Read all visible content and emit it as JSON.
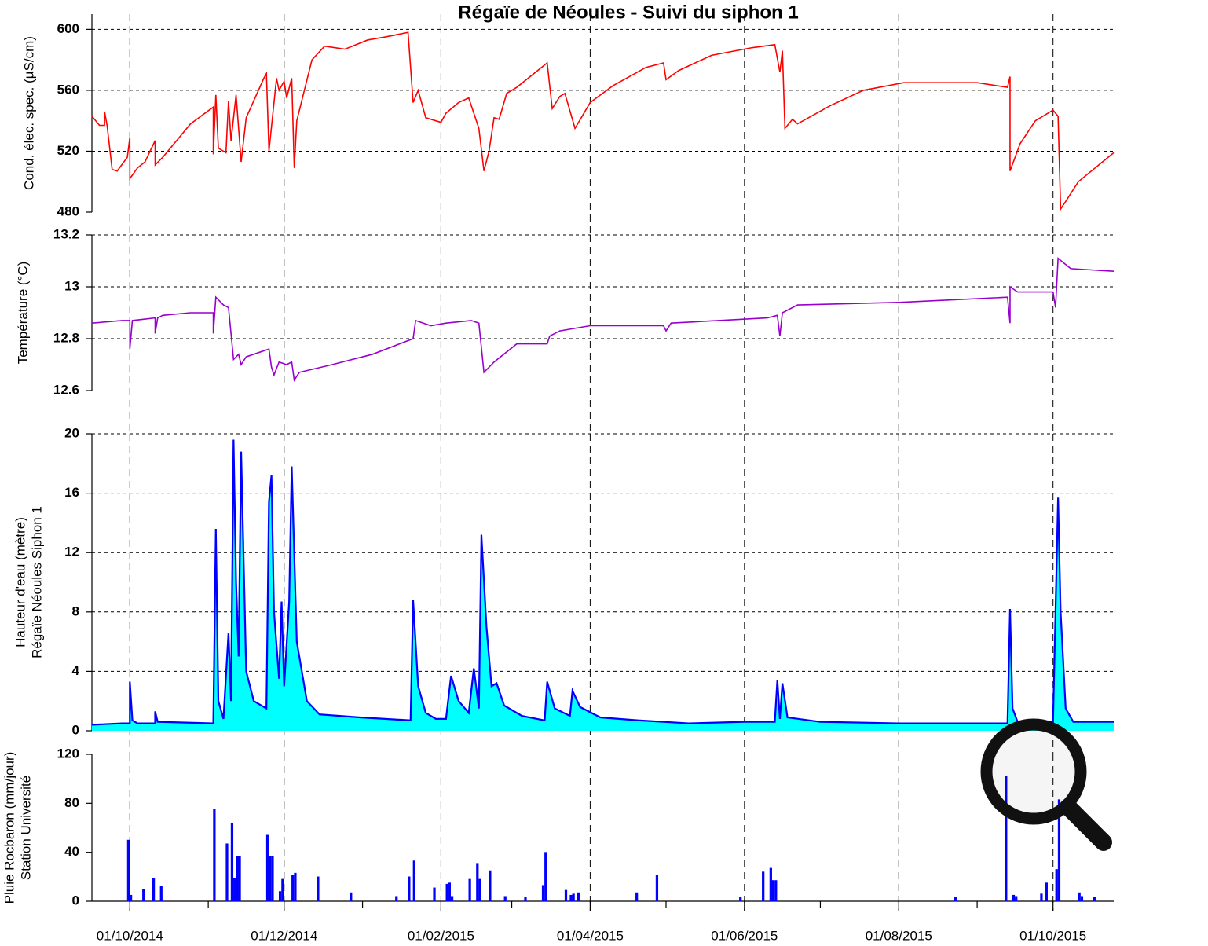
{
  "chart_data": [
    {
      "type": "line",
      "title": "Régaïe de Néoules - Suivi du siphon 1",
      "y_label": [
        "Cond. élec. spec. (µS/cm)"
      ],
      "xlim": [
        "2014-09-16",
        "2015-10-25"
      ],
      "xticks": [
        "2014-10-01",
        "2014-12-01",
        "2015-02-01",
        "2015-04-01",
        "2015-06-01",
        "2015-08-01",
        "2015-10-01"
      ],
      "ylim": [
        480,
        610
      ],
      "yticks": [
        480,
        520,
        560,
        600
      ],
      "grid": "both",
      "color": "#ff0000",
      "x": [
        "2014-09-16",
        "2014-09-19",
        "2014-09-21",
        "2014-09-21",
        "2014-09-22",
        "2014-09-24",
        "2014-09-26",
        "2014-09-30",
        "2014-10-01",
        "2014-10-01",
        "2014-10-04",
        "2014-10-07",
        "2014-10-11",
        "2014-10-11",
        "2014-10-14",
        "2014-10-25",
        "2014-11-03",
        "2014-11-03",
        "2014-11-04",
        "2014-11-05",
        "2014-11-08",
        "2014-11-09",
        "2014-11-10",
        "2014-11-12",
        "2014-11-14",
        "2014-11-16",
        "2014-11-23",
        "2014-11-24",
        "2014-11-25",
        "2014-11-28",
        "2014-11-29",
        "2014-12-01",
        "2014-12-02",
        "2014-12-04",
        "2014-12-05",
        "2014-12-06",
        "2014-12-12",
        "2014-12-17",
        "2014-12-25",
        "2015-01-03",
        "2015-01-10",
        "2015-01-19",
        "2015-01-21",
        "2015-01-23",
        "2015-01-26",
        "2015-02-01",
        "2015-02-03",
        "2015-02-08",
        "2015-02-12",
        "2015-02-14",
        "2015-02-16",
        "2015-02-18",
        "2015-02-20",
        "2015-02-22",
        "2015-02-24",
        "2015-02-27",
        "2015-03-03",
        "2015-03-15",
        "2015-03-17",
        "2015-03-20",
        "2015-03-22",
        "2015-03-26",
        "2015-04-01",
        "2015-04-10",
        "2015-04-23",
        "2015-04-30",
        "2015-05-01",
        "2015-05-06",
        "2015-05-19",
        "2015-06-04",
        "2015-06-13",
        "2015-06-15",
        "2015-06-16",
        "2015-06-17",
        "2015-06-20",
        "2015-06-22",
        "2015-07-05",
        "2015-07-18",
        "2015-08-03",
        "2015-09-01",
        "2015-09-13",
        "2015-09-14",
        "2015-09-14",
        "2015-09-18",
        "2015-09-24",
        "2015-10-01",
        "2015-10-03",
        "2015-10-04",
        "2015-10-06",
        "2015-10-11",
        "2015-10-25"
      ],
      "values": [
        543,
        537,
        537,
        546,
        537,
        508,
        507,
        516,
        529,
        502,
        509,
        513,
        527,
        511,
        516,
        538,
        549,
        518,
        557,
        522,
        519,
        553,
        527,
        557,
        513,
        542,
        568,
        571,
        520,
        568,
        560,
        566,
        555,
        568,
        509,
        540,
        580,
        589,
        587,
        593,
        595,
        598,
        552,
        560,
        542,
        539,
        545,
        552,
        555,
        545,
        535,
        507,
        520,
        542,
        541,
        558,
        562,
        578,
        548,
        556,
        558,
        535,
        552,
        563,
        575,
        578,
        567,
        573,
        583,
        588,
        590,
        572,
        586,
        535,
        541,
        538,
        550,
        560,
        565,
        565,
        562,
        569,
        507,
        525,
        540,
        547,
        543,
        482,
        487,
        500,
        519
      ]
    },
    {
      "type": "line",
      "y_label": [
        "Température (°C)"
      ],
      "xlim": [
        "2014-09-16",
        "2015-10-25"
      ],
      "xticks": [
        "2014-10-01",
        "2014-12-01",
        "2015-02-01",
        "2015-04-01",
        "2015-06-01",
        "2015-08-01",
        "2015-10-01"
      ],
      "ylim": [
        12.6,
        13.2
      ],
      "yticks": [
        12.6,
        12.8,
        13,
        13.2
      ],
      "grid": "both",
      "color": "#9900cc",
      "x": [
        "2014-09-16",
        "2014-09-28",
        "2014-10-01",
        "2014-10-01",
        "2014-10-02",
        "2014-10-11",
        "2014-10-11",
        "2014-10-12",
        "2014-10-14",
        "2014-10-25",
        "2014-11-03",
        "2014-11-03",
        "2014-11-04",
        "2014-11-07",
        "2014-11-09",
        "2014-11-11",
        "2014-11-13",
        "2014-11-14",
        "2014-11-16",
        "2014-11-25",
        "2014-11-26",
        "2014-11-27",
        "2014-11-29",
        "2014-12-02",
        "2014-12-04",
        "2014-12-05",
        "2014-12-07",
        "2014-12-20",
        "2015-01-05",
        "2015-01-21",
        "2015-01-22",
        "2015-01-28",
        "2015-02-03",
        "2015-02-13",
        "2015-02-16",
        "2015-02-18",
        "2015-02-22",
        "2015-03-03",
        "2015-03-15",
        "2015-03-16",
        "2015-03-20",
        "2015-04-01",
        "2015-04-30",
        "2015-05-01",
        "2015-05-03",
        "2015-06-10",
        "2015-06-14",
        "2015-06-15",
        "2015-06-16",
        "2015-06-22",
        "2015-08-01",
        "2015-09-13",
        "2015-09-14",
        "2015-09-14",
        "2015-09-17",
        "2015-10-01",
        "2015-10-02",
        "2015-10-03",
        "2015-10-08",
        "2015-10-25"
      ],
      "values": [
        12.86,
        12.87,
        12.87,
        12.76,
        12.87,
        12.88,
        12.82,
        12.88,
        12.89,
        12.9,
        12.9,
        12.82,
        12.96,
        12.93,
        12.92,
        12.72,
        12.74,
        12.7,
        12.73,
        12.76,
        12.69,
        12.66,
        12.71,
        12.7,
        12.71,
        12.64,
        12.67,
        12.7,
        12.74,
        12.8,
        12.87,
        12.85,
        12.86,
        12.87,
        12.86,
        12.67,
        12.71,
        12.78,
        12.78,
        12.81,
        12.83,
        12.85,
        12.85,
        12.83,
        12.86,
        12.88,
        12.89,
        12.81,
        12.9,
        12.93,
        12.94,
        12.96,
        12.86,
        13.0,
        12.98,
        12.98,
        12.92,
        13.11,
        13.07,
        13.06
      ]
    },
    {
      "type": "area",
      "y_label": [
        "Hauteur d'eau (mètre)",
        "Régaïe Néoules Siphon 1"
      ],
      "xlim": [
        "2014-09-16",
        "2015-10-25"
      ],
      "xticks": [
        "2014-10-01",
        "2014-12-01",
        "2015-02-01",
        "2015-04-01",
        "2015-06-01",
        "2015-08-01",
        "2015-10-01"
      ],
      "ylim": [
        0,
        20
      ],
      "yticks": [
        0,
        4,
        8,
        12,
        16,
        20
      ],
      "grid": "both",
      "color": "#0000ff",
      "fill_color": "#00ffff",
      "x": [
        "2014-09-16",
        "2014-09-28",
        "2014-10-01",
        "2014-10-01",
        "2014-10-02",
        "2014-10-04",
        "2014-10-11",
        "2014-10-11",
        "2014-10-12",
        "2014-11-03",
        "2014-11-04",
        "2014-11-05",
        "2014-11-07",
        "2014-11-09",
        "2014-11-10",
        "2014-11-11",
        "2014-11-12",
        "2014-11-13",
        "2014-11-14",
        "2014-11-16",
        "2014-11-19",
        "2014-11-24",
        "2014-11-25",
        "2014-11-26",
        "2014-11-27",
        "2014-11-29",
        "2014-11-30",
        "2014-12-01",
        "2014-12-03",
        "2014-12-04",
        "2014-12-06",
        "2014-12-10",
        "2014-12-15",
        "2014-12-31",
        "2015-01-10",
        "2015-01-20",
        "2015-01-21",
        "2015-01-23",
        "2015-01-26",
        "2015-01-30",
        "2015-02-03",
        "2015-02-05",
        "2015-02-08",
        "2015-02-12",
        "2015-02-14",
        "2015-02-16",
        "2015-02-17",
        "2015-02-19",
        "2015-02-21",
        "2015-02-23",
        "2015-02-26",
        "2015-03-05",
        "2015-03-14",
        "2015-03-15",
        "2015-03-18",
        "2015-03-24",
        "2015-03-25",
        "2015-03-28",
        "2015-04-05",
        "2015-04-20",
        "2015-05-10",
        "2015-06-01",
        "2015-06-13",
        "2015-06-14",
        "2015-06-15",
        "2015-06-16",
        "2015-06-18",
        "2015-07-01",
        "2015-08-01",
        "2015-09-13",
        "2015-09-14",
        "2015-09-15",
        "2015-09-17",
        "2015-10-01",
        "2015-10-03",
        "2015-10-04",
        "2015-10-06",
        "2015-10-09",
        "2015-10-25"
      ],
      "values": [
        0.4,
        0.5,
        0.5,
        3.3,
        0.7,
        0.5,
        0.5,
        1.3,
        0.6,
        0.5,
        13.6,
        2,
        0.8,
        6.6,
        2,
        19.6,
        10,
        5,
        18.8,
        4,
        2,
        1.5,
        15.4,
        17.2,
        8,
        3.5,
        8.7,
        3,
        8.7,
        17.8,
        6,
        2,
        1.1,
        0.9,
        0.8,
        0.7,
        8.8,
        3,
        1.2,
        0.8,
        0.8,
        3.7,
        2,
        1.2,
        4.2,
        1.5,
        13.2,
        7,
        3,
        3.2,
        1.7,
        1,
        0.7,
        3.3,
        1.5,
        1,
        2.7,
        1.6,
        0.9,
        0.7,
        0.5,
        0.6,
        0.6,
        3.4,
        0.8,
        3.2,
        0.9,
        0.6,
        0.5,
        0.5,
        8.2,
        1.5,
        0.6,
        0.6,
        15.7,
        8,
        1.5,
        0.6,
        0.6
      ]
    },
    {
      "type": "bar",
      "y_label": [
        "Pluie Rocbaron (mm/jour)",
        "Station Université"
      ],
      "xlim": [
        "2014-09-16",
        "2015-10-25"
      ],
      "xticks": [
        {
          "value": "2014-10-01",
          "label": "01/10/2014"
        },
        {
          "value": "2014-12-01",
          "label": "01/12/2014"
        },
        {
          "value": "2015-02-01",
          "label": "01/02/2015"
        },
        {
          "value": "2015-04-01",
          "label": "01/04/2015"
        },
        {
          "value": "2015-06-01",
          "label": "01/06/2015"
        },
        {
          "value": "2015-08-01",
          "label": "01/08/2015"
        },
        {
          "value": "2015-10-01",
          "label": "01/10/2015"
        }
      ],
      "xminor_ticks": [
        "2014-11-01",
        "2015-01-01",
        "2015-03-01",
        "2015-05-01",
        "2015-07-01",
        "2015-09-01"
      ],
      "ylim": [
        0,
        120
      ],
      "yticks": [
        0,
        40,
        80,
        120
      ],
      "grid": "x",
      "color": "#0000ff",
      "x": [
        "2014-09-30",
        "2014-10-01",
        "2014-10-06",
        "2014-10-10",
        "2014-10-13",
        "2014-11-03",
        "2014-11-08",
        "2014-11-10",
        "2014-11-11",
        "2014-11-12",
        "2014-11-13",
        "2014-11-24",
        "2014-11-25",
        "2014-11-26",
        "2014-11-29",
        "2014-11-30",
        "2014-12-04",
        "2014-12-05",
        "2014-12-14",
        "2014-12-27",
        "2015-01-14",
        "2015-01-19",
        "2015-01-21",
        "2015-01-29",
        "2015-02-03",
        "2015-02-04",
        "2015-02-05",
        "2015-02-12",
        "2015-02-15",
        "2015-02-16",
        "2015-02-20",
        "2015-02-26",
        "2015-03-06",
        "2015-03-13",
        "2015-03-14",
        "2015-03-22",
        "2015-03-24",
        "2015-03-25",
        "2015-03-27",
        "2015-04-19",
        "2015-04-27",
        "2015-05-30",
        "2015-06-08",
        "2015-06-11",
        "2015-06-12",
        "2015-06-13",
        "2015-08-23",
        "2015-09-12",
        "2015-09-15",
        "2015-09-16",
        "2015-09-26",
        "2015-09-28",
        "2015-10-02",
        "2015-10-03",
        "2015-10-11",
        "2015-10-12",
        "2015-10-17"
      ],
      "values": [
        50,
        5,
        10,
        19,
        12,
        75,
        47,
        64,
        19,
        37,
        37,
        54,
        37,
        37,
        8,
        18,
        21,
        23,
        20,
        7,
        4,
        20,
        33,
        11,
        14,
        15,
        4,
        18,
        31,
        18,
        25,
        4,
        3,
        13,
        40,
        9,
        5,
        6,
        7,
        7,
        21,
        3,
        24,
        27,
        17,
        17,
        3,
        102,
        5,
        4,
        6,
        15,
        26,
        83,
        7,
        4,
        3
      ]
    }
  ]
}
